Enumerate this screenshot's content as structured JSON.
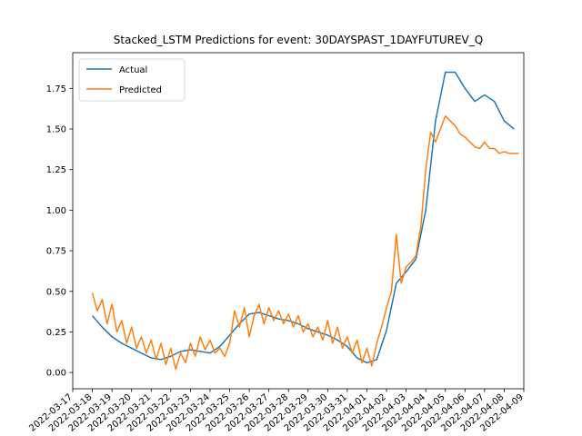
{
  "chart_data": {
    "type": "line",
    "title": "Stacked_LSTM Predictions for event: 30DAYSPAST_1DAYFUTUREV_Q",
    "xlabel": "",
    "ylabel": "",
    "legend_position": "top-left",
    "grid": false,
    "xlim": [
      "2022-03-17",
      "2022-04-09"
    ],
    "ylim": [
      -0.1,
      1.97
    ],
    "y_ticks": [
      0.0,
      0.25,
      0.5,
      0.75,
      1.0,
      1.25,
      1.5,
      1.75
    ],
    "y_tick_labels": [
      "0.00",
      "0.25",
      "0.50",
      "0.75",
      "1.00",
      "1.25",
      "1.50",
      "1.75"
    ],
    "x_ticks": [
      "2022-03-17",
      "2022-03-18",
      "2022-03-19",
      "2022-03-20",
      "2022-03-21",
      "2022-03-22",
      "2022-03-23",
      "2022-03-24",
      "2022-03-25",
      "2022-03-26",
      "2022-03-27",
      "2022-03-28",
      "2022-03-29",
      "2022-03-30",
      "2022-03-31",
      "2022-04-01",
      "2022-04-02",
      "2022-04-03",
      "2022-04-04",
      "2022-04-05",
      "2022-04-06",
      "2022-04-07",
      "2022-04-08",
      "2022-04-09"
    ],
    "series": [
      {
        "name": "Actual",
        "color": "#1f77b4",
        "x": [
          "2022-03-18",
          "2022-03-18T12:00",
          "2022-03-19",
          "2022-03-19T12:00",
          "2022-03-20",
          "2022-03-20T12:00",
          "2022-03-21",
          "2022-03-21T12:00",
          "2022-03-22",
          "2022-03-22T12:00",
          "2022-03-23",
          "2022-03-23T12:00",
          "2022-03-24",
          "2022-03-24T12:00",
          "2022-03-25",
          "2022-03-25T12:00",
          "2022-03-26",
          "2022-03-26T12:00",
          "2022-03-27",
          "2022-03-27T12:00",
          "2022-03-28",
          "2022-03-28T12:00",
          "2022-03-29",
          "2022-03-29T12:00",
          "2022-03-30",
          "2022-03-30T12:00",
          "2022-03-31",
          "2022-03-31T12:00",
          "2022-04-01",
          "2022-04-01T12:00",
          "2022-04-02",
          "2022-04-02T12:00",
          "2022-04-03",
          "2022-04-03T12:00",
          "2022-04-04",
          "2022-04-04T12:00",
          "2022-04-05",
          "2022-04-05T12:00",
          "2022-04-06",
          "2022-04-06T12:00",
          "2022-04-07",
          "2022-04-07T12:00",
          "2022-04-08",
          "2022-04-08T12:00"
        ],
        "values": [
          0.35,
          0.28,
          0.22,
          0.18,
          0.15,
          0.12,
          0.09,
          0.08,
          0.1,
          0.13,
          0.14,
          0.13,
          0.12,
          0.16,
          0.23,
          0.3,
          0.36,
          0.37,
          0.35,
          0.33,
          0.32,
          0.3,
          0.27,
          0.25,
          0.23,
          0.2,
          0.16,
          0.09,
          0.06,
          0.08,
          0.26,
          0.55,
          0.62,
          0.7,
          1.0,
          1.55,
          1.85,
          1.85,
          1.75,
          1.67,
          1.71,
          1.67,
          1.55,
          1.5
        ]
      },
      {
        "name": "Predicted",
        "color": "#ff7f0e",
        "x": [
          "2022-03-18",
          "2022-03-18T06:00",
          "2022-03-18T12:00",
          "2022-03-18T18:00",
          "2022-03-19",
          "2022-03-19T06:00",
          "2022-03-19T12:00",
          "2022-03-19T18:00",
          "2022-03-20",
          "2022-03-20T06:00",
          "2022-03-20T12:00",
          "2022-03-20T18:00",
          "2022-03-21",
          "2022-03-21T06:00",
          "2022-03-21T12:00",
          "2022-03-21T18:00",
          "2022-03-22",
          "2022-03-22T06:00",
          "2022-03-22T12:00",
          "2022-03-22T18:00",
          "2022-03-23",
          "2022-03-23T06:00",
          "2022-03-23T12:00",
          "2022-03-23T18:00",
          "2022-03-24",
          "2022-03-24T06:00",
          "2022-03-24T12:00",
          "2022-03-24T18:00",
          "2022-03-25",
          "2022-03-25T06:00",
          "2022-03-25T12:00",
          "2022-03-25T18:00",
          "2022-03-26",
          "2022-03-26T06:00",
          "2022-03-26T12:00",
          "2022-03-26T18:00",
          "2022-03-27",
          "2022-03-27T06:00",
          "2022-03-27T12:00",
          "2022-03-27T18:00",
          "2022-03-28",
          "2022-03-28T06:00",
          "2022-03-28T12:00",
          "2022-03-28T18:00",
          "2022-03-29",
          "2022-03-29T06:00",
          "2022-03-29T12:00",
          "2022-03-29T18:00",
          "2022-03-30",
          "2022-03-30T06:00",
          "2022-03-30T12:00",
          "2022-03-30T18:00",
          "2022-03-31",
          "2022-03-31T06:00",
          "2022-03-31T12:00",
          "2022-03-31T18:00",
          "2022-04-01",
          "2022-04-01T06:00",
          "2022-04-01T12:00",
          "2022-04-01T18:00",
          "2022-04-02",
          "2022-04-02T06:00",
          "2022-04-02T12:00",
          "2022-04-02T18:00",
          "2022-04-03",
          "2022-04-03T06:00",
          "2022-04-03T12:00",
          "2022-04-03T18:00",
          "2022-04-04",
          "2022-04-04T06:00",
          "2022-04-04T12:00",
          "2022-04-04T18:00",
          "2022-04-05",
          "2022-04-05T06:00",
          "2022-04-05T12:00",
          "2022-04-05T18:00",
          "2022-04-06",
          "2022-04-06T06:00",
          "2022-04-06T12:00",
          "2022-04-06T18:00",
          "2022-04-07",
          "2022-04-07T06:00",
          "2022-04-07T12:00",
          "2022-04-07T18:00",
          "2022-04-08",
          "2022-04-08T06:00",
          "2022-04-08T12:00",
          "2022-04-08T18:00"
        ],
        "values": [
          0.49,
          0.38,
          0.45,
          0.3,
          0.42,
          0.25,
          0.32,
          0.18,
          0.28,
          0.15,
          0.22,
          0.12,
          0.2,
          0.08,
          0.18,
          0.05,
          0.15,
          0.02,
          0.12,
          0.06,
          0.18,
          0.1,
          0.22,
          0.14,
          0.2,
          0.12,
          0.15,
          0.1,
          0.18,
          0.38,
          0.28,
          0.4,
          0.22,
          0.35,
          0.42,
          0.3,
          0.4,
          0.32,
          0.38,
          0.3,
          0.36,
          0.28,
          0.35,
          0.25,
          0.3,
          0.22,
          0.28,
          0.2,
          0.32,
          0.18,
          0.28,
          0.15,
          0.22,
          0.12,
          0.2,
          0.06,
          0.15,
          0.04,
          0.18,
          0.28,
          0.4,
          0.5,
          0.85,
          0.55,
          0.65,
          0.68,
          0.72,
          0.9,
          1.25,
          1.48,
          1.42,
          1.5,
          1.58,
          1.55,
          1.52,
          1.47,
          1.45,
          1.42,
          1.39,
          1.38,
          1.42,
          1.38,
          1.38,
          1.35,
          1.36,
          1.35,
          1.35,
          1.35
        ]
      }
    ]
  }
}
